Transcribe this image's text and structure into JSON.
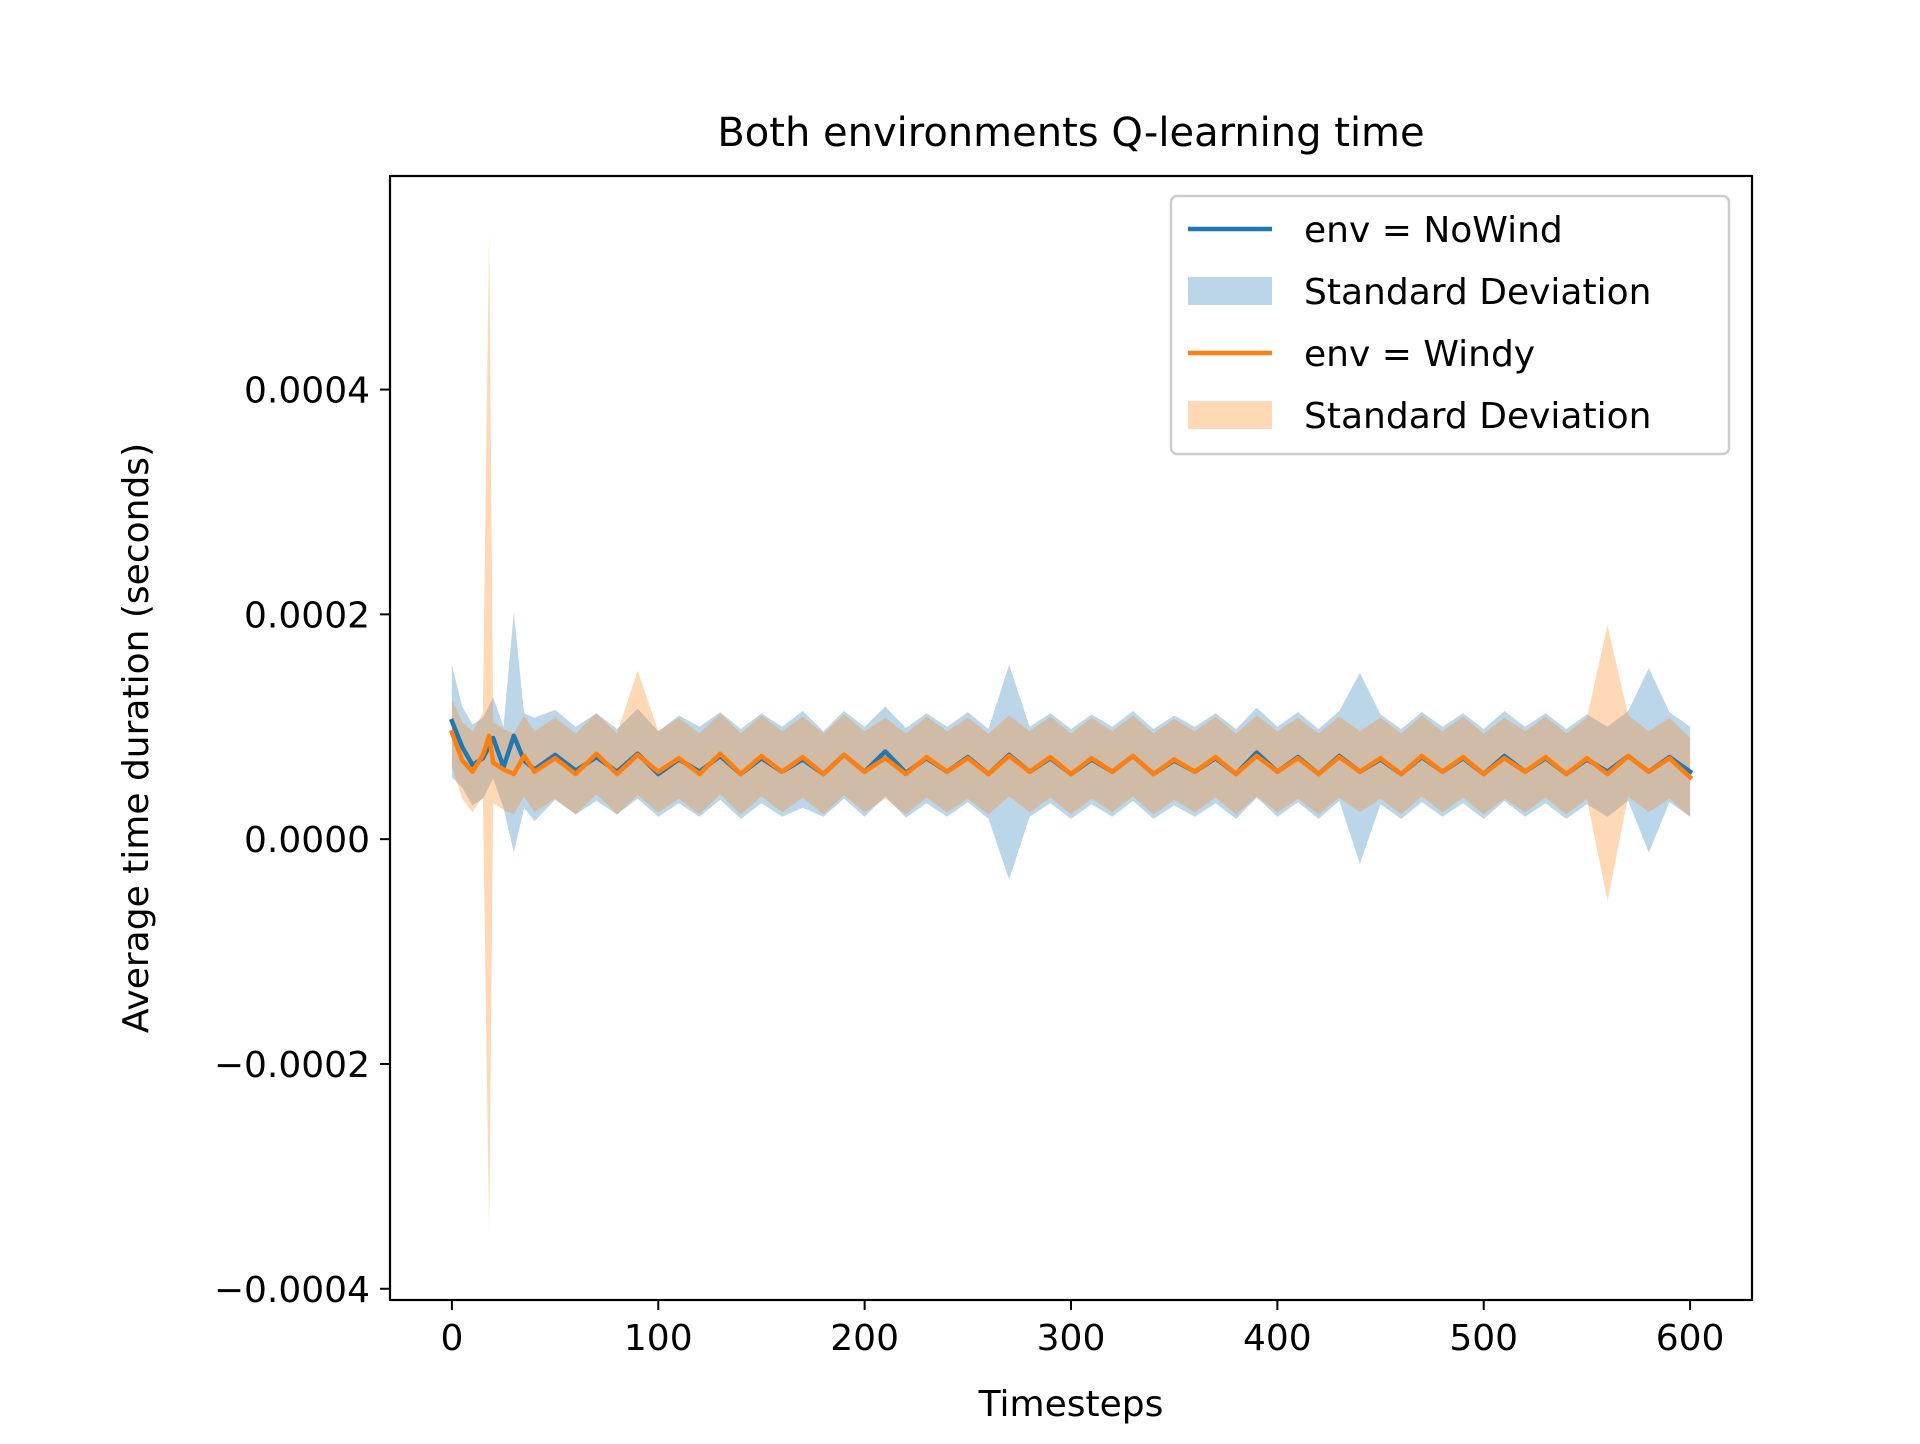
{
  "chart_data": {
    "type": "line",
    "title": "Both environments Q-learning time",
    "xlabel": "Timesteps",
    "ylabel": "Average time duration (seconds)",
    "xlim": [
      -30,
      630
    ],
    "ylim": [
      -0.00041,
      0.00059
    ],
    "xticks": [
      0,
      100,
      200,
      300,
      400,
      500,
      600
    ],
    "xtick_labels": [
      "0",
      "100",
      "200",
      "300",
      "400",
      "500",
      "600"
    ],
    "yticks": [
      -0.0004,
      -0.0002,
      0.0,
      0.0002,
      0.0004
    ],
    "ytick_labels": [
      "−0.0004",
      "−0.0002",
      "0.0000",
      "0.0002",
      "0.0004"
    ],
    "grid": false,
    "legend_position": "upper right",
    "legend": [
      {
        "label": "env = NoWind",
        "kind": "line",
        "color": "#1f77b4"
      },
      {
        "label": "Standard Deviation",
        "kind": "band",
        "color": "#1f77b4"
      },
      {
        "label": "env = Windy",
        "kind": "line",
        "color": "#ff7f0e"
      },
      {
        "label": "Standard Deviation",
        "kind": "band",
        "color": "#ff7f0e"
      }
    ],
    "series": [
      {
        "name": "env = NoWind",
        "color": "#1f77b4",
        "x": [
          0,
          5,
          10,
          15,
          20,
          25,
          30,
          35,
          40,
          50,
          60,
          70,
          80,
          90,
          100,
          110,
          120,
          130,
          140,
          150,
          160,
          170,
          180,
          190,
          200,
          210,
          220,
          230,
          240,
          250,
          260,
          270,
          280,
          290,
          300,
          310,
          320,
          330,
          340,
          350,
          360,
          370,
          380,
          390,
          400,
          410,
          420,
          430,
          440,
          450,
          460,
          470,
          480,
          490,
          500,
          510,
          520,
          530,
          540,
          550,
          560,
          570,
          580,
          590,
          600
        ],
        "y": [
          0.000105,
          8.2e-05,
          6.6e-05,
          7.2e-05,
          9e-05,
          6.4e-05,
          9.2e-05,
          7e-05,
          6.2e-05,
          7.5e-05,
          6.1e-05,
          7.3e-05,
          6e-05,
          7.6e-05,
          5.8e-05,
          7.1e-05,
          6e-05,
          7.4e-05,
          5.8e-05,
          7.2e-05,
          6e-05,
          7.1e-05,
          5.8e-05,
          7.5e-05,
          6e-05,
          7.8e-05,
          5.9e-05,
          7.2e-05,
          6e-05,
          7.3e-05,
          5.8e-05,
          7.5e-05,
          6e-05,
          7.2e-05,
          5.8e-05,
          7.1e-05,
          6e-05,
          7.4e-05,
          5.8e-05,
          7e-05,
          6e-05,
          7.2e-05,
          5.8e-05,
          7.7e-05,
          6e-05,
          7.3e-05,
          5.8e-05,
          7.4e-05,
          6e-05,
          7.1e-05,
          5.8e-05,
          7.3e-05,
          6e-05,
          7.2e-05,
          5.8e-05,
          7.4e-05,
          6e-05,
          7.2e-05,
          5.8e-05,
          7.1e-05,
          6e-05,
          7.4e-05,
          6e-05,
          7.3e-05,
          6e-05
        ],
        "band_upper": [
          0.000155,
          0.000118,
          0.000102,
          0.000108,
          0.000126,
          0.0001,
          0.000202,
          0.000112,
          0.000108,
          0.000115,
          0.0001,
          0.000112,
          9.8e-05,
          0.000116,
          9.6e-05,
          0.00011,
          0.0001,
          0.000113,
          9.8e-05,
          0.000112,
          0.0001,
          0.000114,
          9.6e-05,
          0.000114,
          0.0001,
          0.000118,
          9.9e-05,
          0.000112,
          0.0001,
          0.000113,
          9.8e-05,
          0.000155,
          0.0001,
          0.000112,
          9.8e-05,
          0.000111,
          0.0001,
          0.000114,
          9.8e-05,
          0.00011,
          0.0001,
          0.000112,
          9.8e-05,
          0.000117,
          0.0001,
          0.000113,
          9.8e-05,
          0.000114,
          0.000148,
          0.000111,
          9.8e-05,
          0.000113,
          0.0001,
          0.000112,
          9.8e-05,
          0.000114,
          0.0001,
          0.000112,
          9.8e-05,
          0.000111,
          0.0001,
          0.000114,
          0.000152,
          0.000113,
          0.0001
        ],
        "band_lower": [
          5.5e-05,
          4.6e-05,
          3e-05,
          3.6e-05,
          5.4e-05,
          2.8e-05,
          -1.2e-05,
          2.8e-05,
          1.6e-05,
          3.5e-05,
          2.2e-05,
          3.4e-05,
          2.2e-05,
          3.6e-05,
          2e-05,
          3.2e-05,
          2e-05,
          3.5e-05,
          1.8e-05,
          3.2e-05,
          2e-05,
          2.8e-05,
          2e-05,
          3.6e-05,
          2e-05,
          3.8e-05,
          1.9e-05,
          3.2e-05,
          2e-05,
          3.3e-05,
          1.8e-05,
          -3.6e-05,
          2e-05,
          3.2e-05,
          1.8e-05,
          3.1e-05,
          2e-05,
          3.4e-05,
          1.8e-05,
          3e-05,
          2e-05,
          3.2e-05,
          1.8e-05,
          3.7e-05,
          2e-05,
          3.3e-05,
          1.8e-05,
          3.4e-05,
          -2.2e-05,
          3.1e-05,
          1.8e-05,
          3.3e-05,
          2e-05,
          3.2e-05,
          1.8e-05,
          3.4e-05,
          2e-05,
          3.2e-05,
          1.8e-05,
          3.1e-05,
          2e-05,
          3.4e-05,
          -1.2e-05,
          3.3e-05,
          2e-05
        ]
      },
      {
        "name": "env = Windy",
        "color": "#ff7f0e",
        "x": [
          0,
          5,
          10,
          15,
          18,
          20,
          25,
          30,
          35,
          40,
          50,
          60,
          70,
          80,
          90,
          100,
          110,
          120,
          130,
          140,
          150,
          160,
          170,
          180,
          190,
          200,
          210,
          220,
          230,
          240,
          250,
          260,
          270,
          280,
          290,
          300,
          310,
          320,
          330,
          340,
          350,
          360,
          370,
          380,
          390,
          400,
          410,
          420,
          430,
          440,
          450,
          460,
          470,
          480,
          490,
          500,
          510,
          520,
          530,
          540,
          550,
          560,
          570,
          580,
          590,
          600
        ],
        "y": [
          9.5e-05,
          7e-05,
          6e-05,
          7.5e-05,
          9.2e-05,
          6.8e-05,
          6.2e-05,
          5.8e-05,
          7.4e-05,
          6e-05,
          7.2e-05,
          5.8e-05,
          7.6e-05,
          5.8e-05,
          7.5e-05,
          6e-05,
          7.2e-05,
          5.8e-05,
          7.6e-05,
          5.8e-05,
          7.4e-05,
          6e-05,
          7.3e-05,
          5.8e-05,
          7.5e-05,
          6e-05,
          7.2e-05,
          5.8e-05,
          7.3e-05,
          6e-05,
          7.2e-05,
          5.8e-05,
          7.4e-05,
          6e-05,
          7.3e-05,
          5.8e-05,
          7.2e-05,
          6e-05,
          7.4e-05,
          5.8e-05,
          7.1e-05,
          6e-05,
          7.3e-05,
          5.8e-05,
          7.4e-05,
          6e-05,
          7.2e-05,
          5.8e-05,
          7.3e-05,
          6e-05,
          7.2e-05,
          5.8e-05,
          7.4e-05,
          6e-05,
          7.3e-05,
          5.8e-05,
          7.2e-05,
          6e-05,
          7.3e-05,
          5.8e-05,
          7.2e-05,
          5.8e-05,
          7.4e-05,
          6e-05,
          7.2e-05,
          5.5e-05
        ],
        "band_upper": [
          0.000125,
          0.000104,
          9.6e-05,
          0.000112,
          0.00054,
          0.000104,
          9.8e-05,
          9.4e-05,
          0.00011,
          9.6e-05,
          0.000108,
          9.4e-05,
          0.000112,
          9.4e-05,
          0.00015,
          9.6e-05,
          0.000108,
          9.4e-05,
          0.000112,
          9.4e-05,
          0.00011,
          9.6e-05,
          0.000109,
          9.4e-05,
          0.000111,
          9.6e-05,
          0.000108,
          9.4e-05,
          0.000109,
          9.6e-05,
          0.000108,
          9.4e-05,
          0.00011,
          9.6e-05,
          0.000109,
          9.4e-05,
          0.000108,
          9.6e-05,
          0.00011,
          9.4e-05,
          0.000107,
          9.6e-05,
          0.000109,
          9.4e-05,
          0.00011,
          9.6e-05,
          0.000108,
          9.4e-05,
          0.000109,
          9.6e-05,
          0.000108,
          9.4e-05,
          0.00011,
          9.6e-05,
          0.000109,
          9.4e-05,
          0.000108,
          9.6e-05,
          0.000109,
          9.4e-05,
          0.000108,
          0.00019,
          0.00011,
          9.6e-05,
          0.000108,
          9e-05
        ],
        "band_lower": [
          6.5e-05,
          3.6e-05,
          2.4e-05,
          3.8e-05,
          -0.00035,
          3.2e-05,
          2.6e-05,
          2.2e-05,
          3.8e-05,
          2.4e-05,
          3.6e-05,
          2.2e-05,
          4e-05,
          2.2e-05,
          3.9e-05,
          2.4e-05,
          3.6e-05,
          2.2e-05,
          4e-05,
          2.2e-05,
          3.8e-05,
          2.4e-05,
          3.7e-05,
          2.2e-05,
          3.9e-05,
          2.4e-05,
          3.6e-05,
          2.2e-05,
          3.7e-05,
          2.4e-05,
          3.6e-05,
          2.2e-05,
          3.8e-05,
          2.4e-05,
          3.7e-05,
          2.2e-05,
          3.6e-05,
          2.4e-05,
          3.8e-05,
          2.2e-05,
          3.5e-05,
          2.4e-05,
          3.7e-05,
          2.2e-05,
          3.8e-05,
          2.4e-05,
          3.6e-05,
          2.2e-05,
          3.7e-05,
          2.4e-05,
          3.6e-05,
          2.2e-05,
          3.8e-05,
          2.4e-05,
          3.7e-05,
          2.2e-05,
          3.6e-05,
          2.4e-05,
          3.7e-05,
          2.2e-05,
          3.6e-05,
          -5.5e-05,
          3.8e-05,
          2.4e-05,
          3.6e-05,
          2e-05
        ]
      }
    ]
  }
}
